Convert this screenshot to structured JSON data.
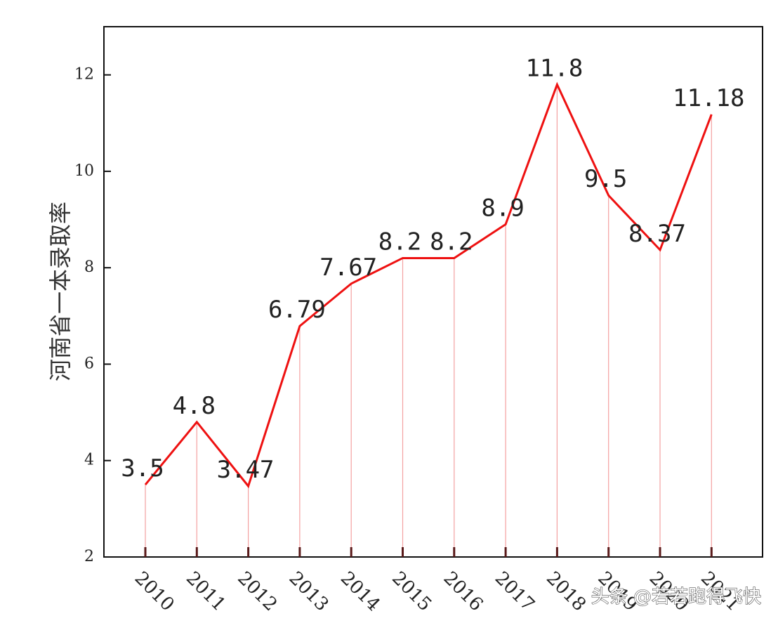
{
  "chart_data": {
    "type": "line",
    "title": "",
    "xlabel": "",
    "ylabel": "河南省一本录取率",
    "categories": [
      "2010",
      "2011",
      "2012",
      "2013",
      "2014",
      "2015",
      "2016",
      "2017",
      "2018",
      "2019",
      "2020",
      "2021"
    ],
    "series": [
      {
        "name": "河南省一本录取率",
        "values": [
          3.5,
          4.8,
          3.47,
          6.79,
          7.67,
          8.2,
          8.2,
          8.9,
          11.8,
          9.5,
          8.37,
          11.18
        ],
        "labels": [
          "3.5",
          "4.8",
          "3.47",
          "6.79",
          "7.67",
          "8.2",
          "8.2",
          "8.9",
          "11.8",
          "9.5",
          "8.37",
          "11.18"
        ],
        "color": "#ee1111"
      }
    ],
    "ylim": [
      2,
      13
    ],
    "yticks": [
      2,
      4,
      6,
      8,
      10,
      12
    ],
    "grid": false,
    "drop_line_color": "#f4a0a0"
  },
  "watermark": "头条 @若若跑得飞快"
}
